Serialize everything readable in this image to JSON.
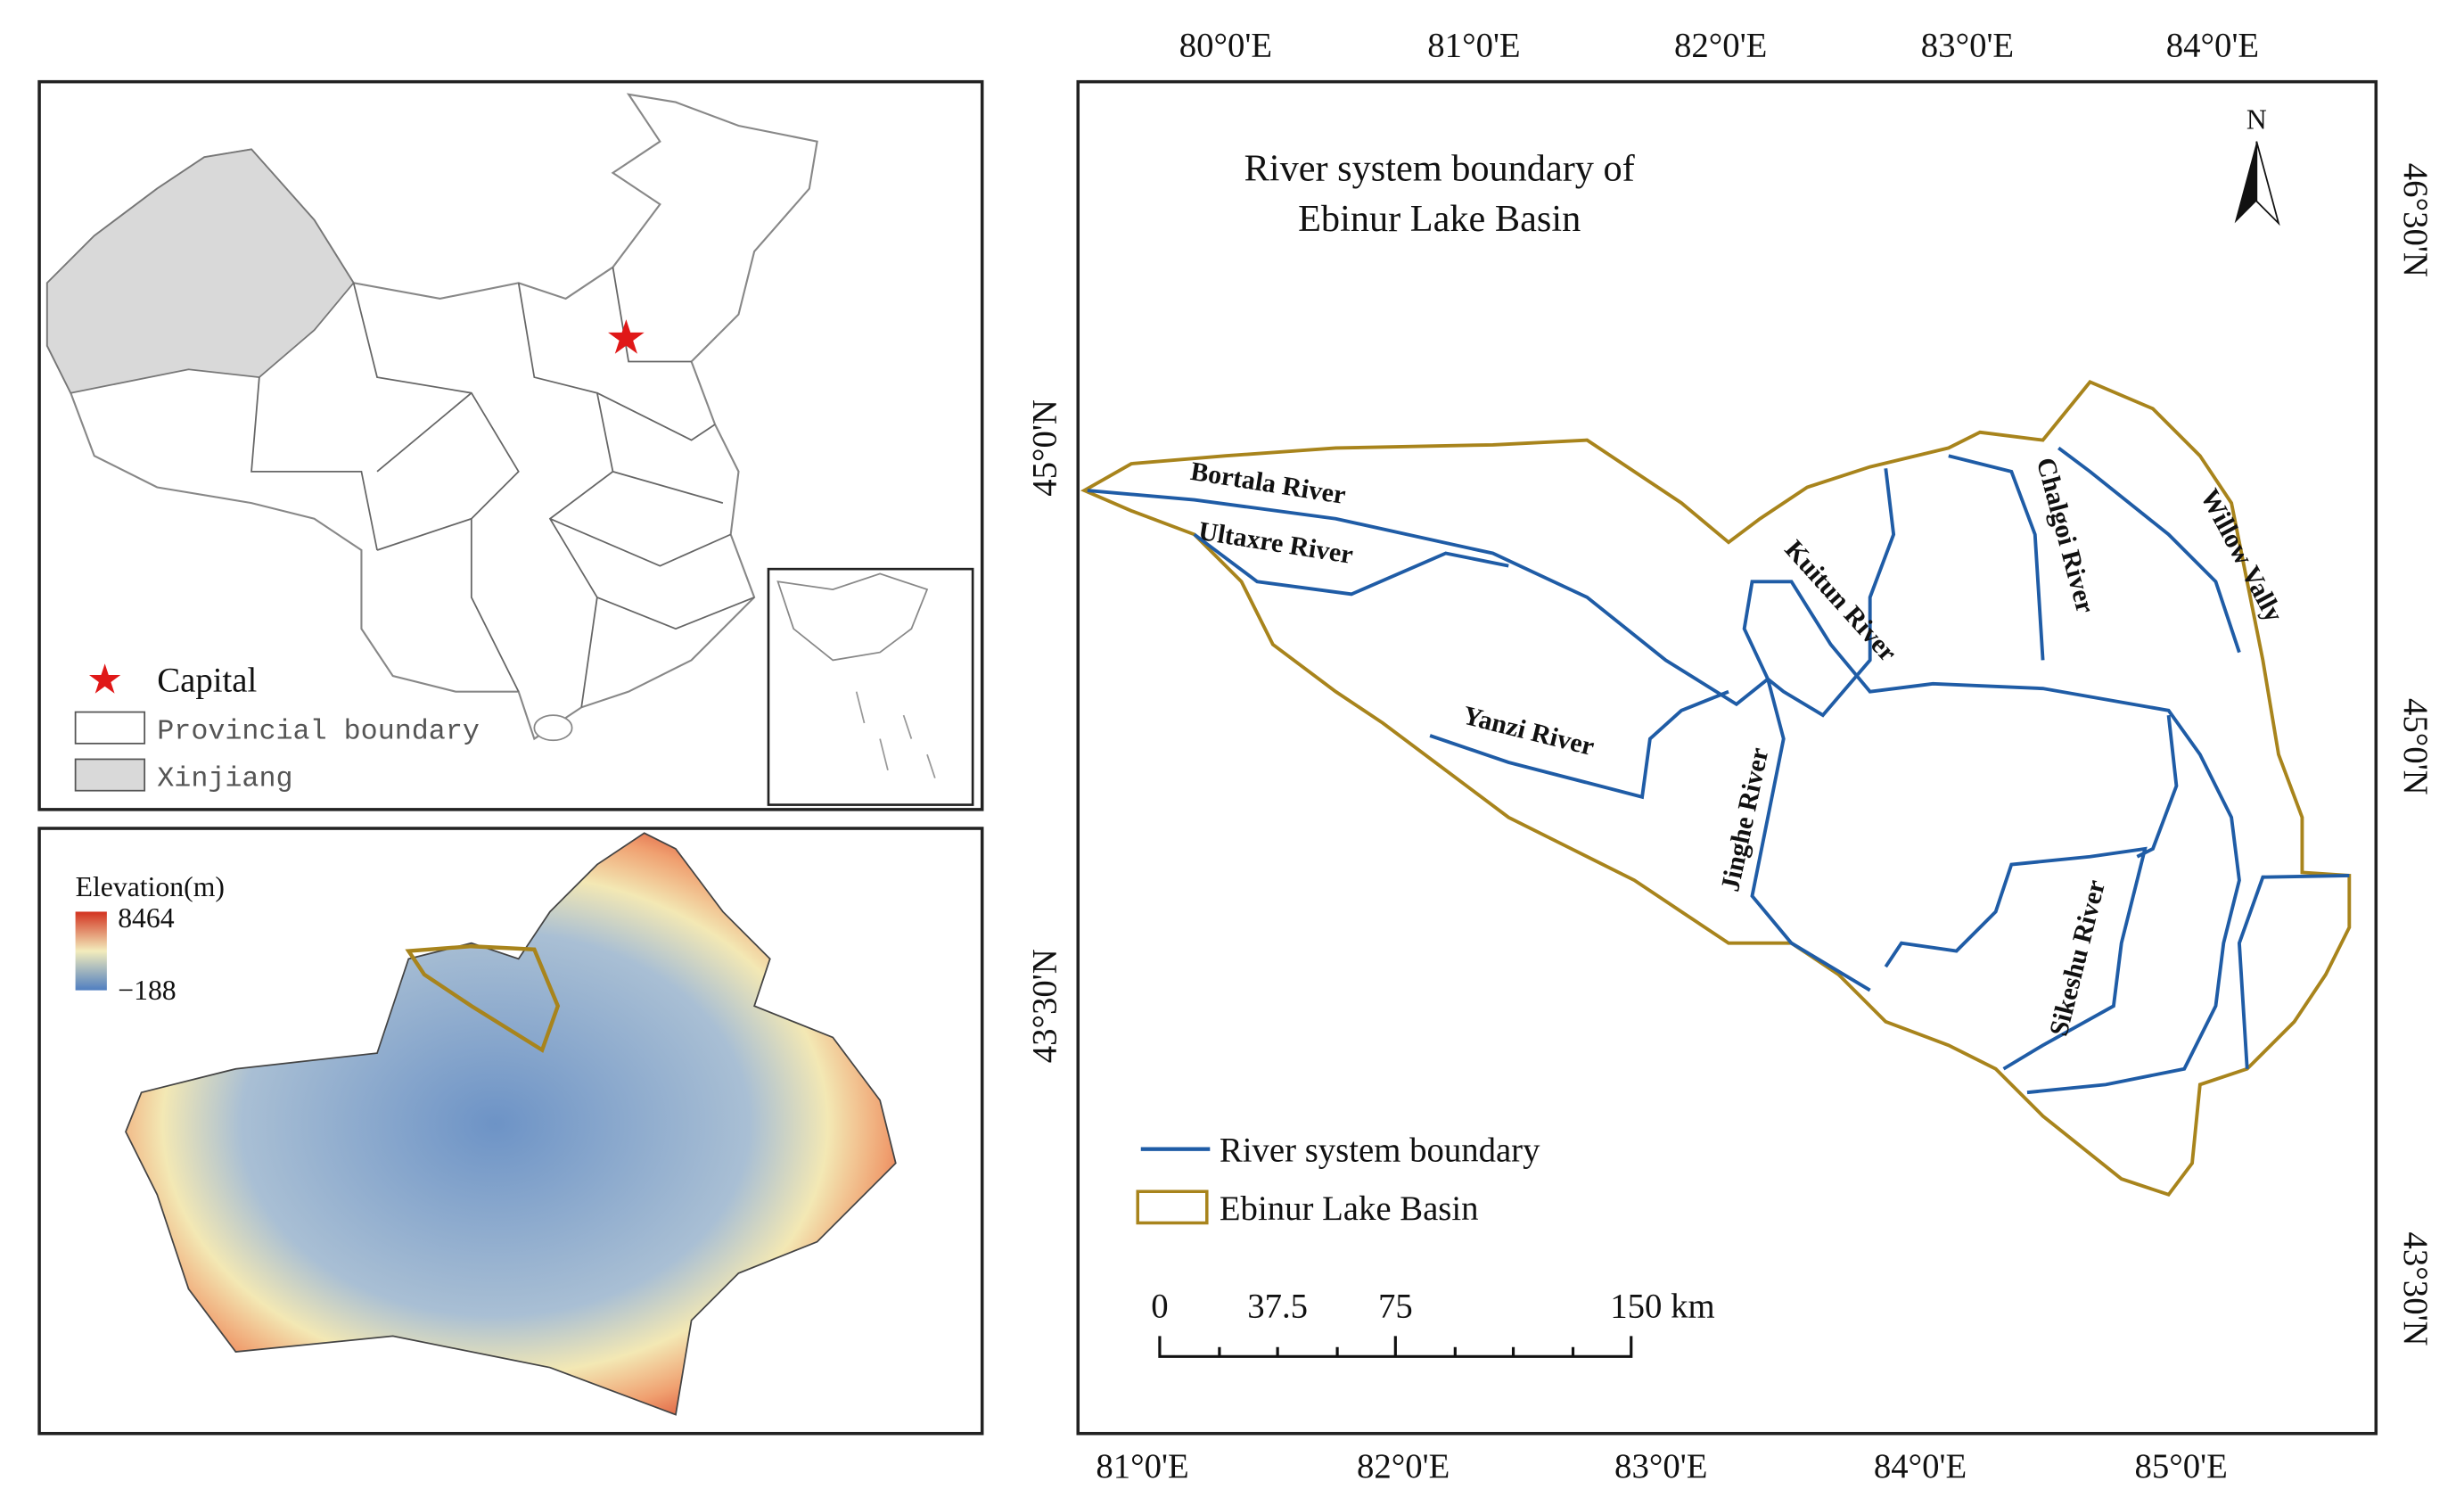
{
  "location_map": {
    "legend": [
      "Capital",
      "Provincial boundary",
      "Xinjiang"
    ]
  },
  "elevation_map": {
    "legend_title": "Elevation(m)",
    "max": "8464",
    "min": "−188"
  },
  "basin_map": {
    "title": [
      "River system boundary of",
      "Ebinur Lake Basin"
    ],
    "north": "N",
    "top_axis": [
      "80°0'E",
      "81°0'E",
      "82°0'E",
      "83°0'E",
      "84°0'E"
    ],
    "bottom_axis": [
      "81°0'E",
      "82°0'E",
      "83°0'E",
      "84°0'E",
      "85°0'E"
    ],
    "left_axis": [
      "45°0'N",
      "43°30'N"
    ],
    "right_axis": [
      "46°30'N",
      "45°0'N",
      "43°30'N"
    ],
    "rivers": [
      "Bortala River",
      "Ultaxre River",
      "Yanzi River",
      "Jinghe River",
      "Kuitun River",
      "Chalgoi River",
      "Willow Vally",
      "Sikeshu River"
    ],
    "legend": [
      "River system boundary",
      "Ebinur Lake Basin"
    ],
    "scale_bar": [
      "0",
      "37.5",
      "75",
      "150 km"
    ]
  }
}
